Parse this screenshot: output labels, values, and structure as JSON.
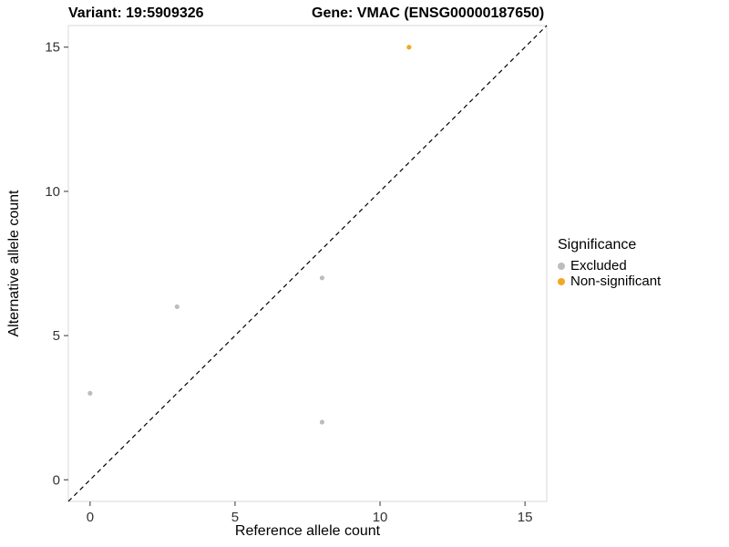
{
  "chart_data": {
    "type": "scatter",
    "title_left": "Variant: 19:5909326",
    "title_right": "Gene: VMAC (ENSG00000187650)",
    "xlabel": "Reference allele count",
    "ylabel": "Alternative allele count",
    "xlim": [
      -0.75,
      15.75
    ],
    "ylim": [
      -0.75,
      15.75
    ],
    "xticks": [
      0,
      5,
      10,
      15
    ],
    "yticks": [
      0,
      5,
      10,
      15
    ],
    "grid": false,
    "abline": {
      "slope": 1,
      "intercept": 0,
      "linetype": "dashed",
      "color": "#000000"
    },
    "series": [
      {
        "name": "Excluded",
        "color": "#BDBDBD",
        "points": [
          [
            0,
            3
          ],
          [
            3,
            6
          ],
          [
            8,
            7
          ],
          [
            8,
            2
          ]
        ]
      },
      {
        "name": "Non-significant",
        "color": "#F5A623",
        "points": [
          [
            11,
            15
          ]
        ]
      }
    ],
    "legend": {
      "title": "Significance",
      "position": "right"
    },
    "colors": {
      "panel_border": "#D9D9D9",
      "axis_text": "#333333",
      "background": "#FFFFFF"
    }
  }
}
